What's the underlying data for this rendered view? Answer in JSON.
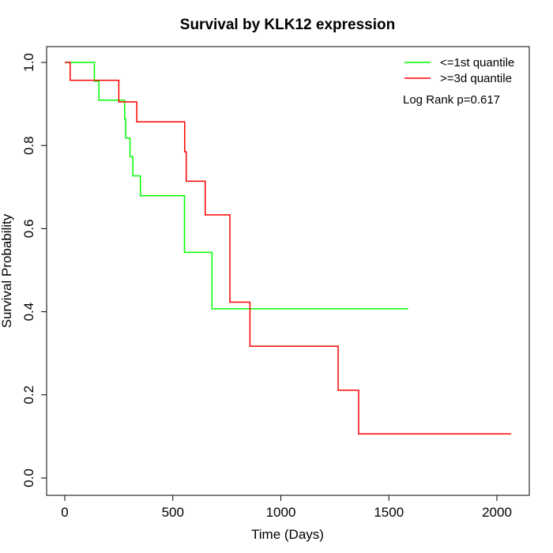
{
  "chart_data": {
    "type": "line",
    "step": true,
    "title": "Survival by KLK12 expression",
    "xlabel": "Time (Days)",
    "ylabel": "Survival Probability",
    "xlim": [
      0,
      2070
    ],
    "ylim": [
      0,
      1.0
    ],
    "x_ticks": [
      0,
      500,
      1000,
      1500,
      2000
    ],
    "y_ticks": [
      0.0,
      0.2,
      0.4,
      0.6,
      0.8,
      1.0
    ],
    "x_tick_labels": [
      "0",
      "500",
      "1000",
      "1500",
      "2000"
    ],
    "y_tick_labels": [
      "0.0",
      "0.2",
      "0.4",
      "0.6",
      "0.8",
      "1.0"
    ],
    "grid": false,
    "legend_position": "top-right",
    "annotation": "Log Rank p=0.617",
    "series": [
      {
        "name": "<=1st quantile",
        "color": "#00ff00",
        "x": [
          0,
          137,
          137,
          158,
          158,
          277,
          277,
          282,
          282,
          286,
          286,
          302,
          302,
          315,
          315,
          350,
          350,
          554,
          554,
          681,
          681,
          1590
        ],
        "y": [
          1.0,
          1.0,
          0.955,
          0.955,
          0.909,
          0.909,
          0.864,
          0.864,
          0.818,
          0.818,
          0.818,
          0.818,
          0.773,
          0.773,
          0.727,
          0.727,
          0.679,
          0.679,
          0.543,
          0.543,
          0.407,
          0.407
        ]
      },
      {
        "name": ">=3d quantile",
        "color": "#ff0000",
        "x": [
          0,
          25,
          25,
          250,
          250,
          333,
          333,
          555,
          555,
          562,
          562,
          650,
          650,
          764,
          764,
          857,
          857,
          1265,
          1265,
          1360,
          1360,
          2065
        ],
        "y": [
          1.0,
          1.0,
          0.957,
          0.957,
          0.905,
          0.905,
          0.857,
          0.857,
          0.785,
          0.785,
          0.714,
          0.714,
          0.633,
          0.633,
          0.423,
          0.423,
          0.317,
          0.317,
          0.211,
          0.211,
          0.106,
          0.106
        ]
      }
    ]
  }
}
